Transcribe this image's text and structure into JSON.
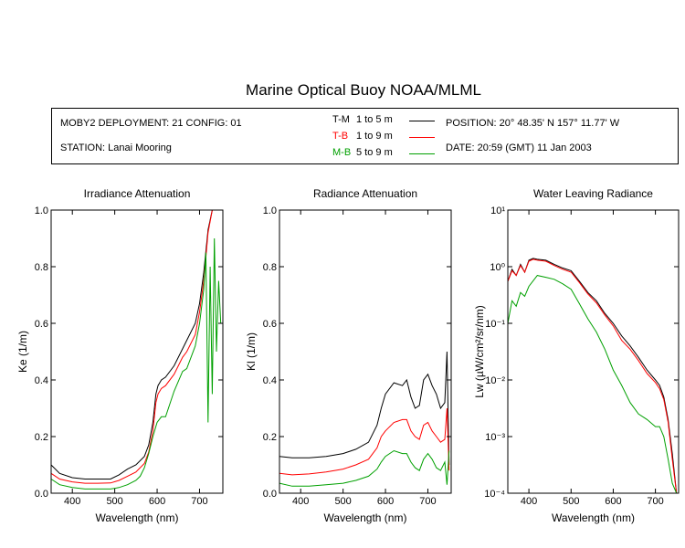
{
  "title": "Marine Optical Buoy NOAA/MLML",
  "info": {
    "deployment": "MOBY2 DEPLOYMENT: 21 CONFIG: 01",
    "station": "STATION: Lanai Mooring",
    "position": "POSITION: 20° 48.35' N   157° 11.77' W",
    "date": "DATE: 20:59 (GMT) 11 Jan 2003"
  },
  "legend": [
    {
      "code": "T-M",
      "range": "1 to 5  m",
      "color": "#000000"
    },
    {
      "code": "T-B",
      "range": "1 to 9  m",
      "color": "#ff0000"
    },
    {
      "code": "M-B",
      "range": "5 to 9  m",
      "color": "#00a000"
    }
  ],
  "chart_data": [
    {
      "type": "line",
      "title": "Irradiance Attenuation",
      "xlabel": "Wavelength (nm)",
      "ylabel": "Ke  (1/m)",
      "xlim": [
        350,
        755
      ],
      "ylim": [
        0,
        1.0
      ],
      "xticks": [
        400,
        500,
        600,
        700
      ],
      "yticks": [
        0.0,
        0.2,
        0.4,
        0.6,
        0.8,
        1.0
      ],
      "ytick_labels": [
        "0.0",
        "0.2",
        "0.4",
        "0.6",
        "0.8",
        "1.0"
      ],
      "series": [
        {
          "legend_code": "T-M",
          "color": "#000000",
          "x": [
            350,
            370,
            400,
            430,
            460,
            490,
            510,
            530,
            550,
            570,
            580,
            590,
            597,
            602,
            610,
            620,
            640,
            660,
            670,
            690,
            700,
            710,
            720,
            730,
            740,
            750
          ],
          "y": [
            0.1,
            0.07,
            0.055,
            0.05,
            0.05,
            0.05,
            0.065,
            0.085,
            0.1,
            0.13,
            0.17,
            0.25,
            0.35,
            0.38,
            0.4,
            0.41,
            0.45,
            0.51,
            0.54,
            0.6,
            0.67,
            0.78,
            0.93,
            1.0,
            1.0,
            1.0
          ]
        },
        {
          "legend_code": "T-B",
          "color": "#ff0000",
          "x": [
            350,
            370,
            400,
            430,
            460,
            490,
            510,
            530,
            550,
            570,
            580,
            590,
            597,
            602,
            610,
            620,
            640,
            660,
            670,
            690,
            700,
            710,
            720,
            730,
            740,
            750
          ],
          "y": [
            0.07,
            0.05,
            0.04,
            0.035,
            0.035,
            0.036,
            0.045,
            0.06,
            0.075,
            0.105,
            0.145,
            0.22,
            0.32,
            0.35,
            0.37,
            0.38,
            0.42,
            0.48,
            0.5,
            0.56,
            0.64,
            0.75,
            0.92,
            1.0,
            1.0,
            1.0
          ]
        },
        {
          "legend_code": "M-B",
          "color": "#00a000",
          "x": [
            350,
            370,
            400,
            430,
            460,
            490,
            510,
            530,
            550,
            560,
            570,
            580,
            590,
            600,
            610,
            620,
            640,
            660,
            670,
            690,
            700,
            710,
            715,
            720,
            725,
            730,
            735,
            740,
            745,
            750
          ],
          "y": [
            0.05,
            0.03,
            0.02,
            0.015,
            0.015,
            0.015,
            0.02,
            0.03,
            0.045,
            0.06,
            0.09,
            0.14,
            0.2,
            0.25,
            0.27,
            0.27,
            0.36,
            0.43,
            0.44,
            0.52,
            0.6,
            0.72,
            0.85,
            0.25,
            0.8,
            0.35,
            0.9,
            0.5,
            0.75,
            0.6
          ]
        }
      ]
    },
    {
      "type": "line",
      "title": "Radiance Attenuation",
      "xlabel": "Wavelength (nm)",
      "ylabel": "Kl  (1/m)",
      "xlim": [
        350,
        755
      ],
      "ylim": [
        0,
        1.0
      ],
      "xticks": [
        400,
        500,
        600,
        700
      ],
      "yticks": [
        0.0,
        0.2,
        0.4,
        0.6,
        0.8,
        1.0
      ],
      "ytick_labels": [
        "0.0",
        "0.2",
        "0.4",
        "0.6",
        "0.8",
        "1.0"
      ],
      "series": [
        {
          "legend_code": "T-M",
          "color": "#000000",
          "x": [
            350,
            380,
            420,
            460,
            500,
            530,
            560,
            580,
            590,
            600,
            620,
            640,
            650,
            660,
            670,
            680,
            690,
            700,
            710,
            720,
            730,
            740,
            745,
            750
          ],
          "y": [
            0.13,
            0.125,
            0.125,
            0.13,
            0.14,
            0.155,
            0.18,
            0.24,
            0.3,
            0.35,
            0.39,
            0.38,
            0.4,
            0.34,
            0.3,
            0.31,
            0.4,
            0.42,
            0.38,
            0.35,
            0.3,
            0.32,
            0.5,
            0.1
          ]
        },
        {
          "legend_code": "T-B",
          "color": "#ff0000",
          "x": [
            350,
            380,
            420,
            460,
            500,
            530,
            560,
            580,
            590,
            600,
            620,
            640,
            650,
            660,
            670,
            680,
            690,
            700,
            710,
            720,
            730,
            740,
            745,
            750
          ],
          "y": [
            0.07,
            0.065,
            0.068,
            0.075,
            0.085,
            0.1,
            0.12,
            0.16,
            0.2,
            0.22,
            0.25,
            0.26,
            0.26,
            0.22,
            0.2,
            0.19,
            0.24,
            0.25,
            0.22,
            0.2,
            0.18,
            0.19,
            0.3,
            0.08
          ]
        },
        {
          "legend_code": "M-B",
          "color": "#00a000",
          "x": [
            350,
            380,
            420,
            460,
            500,
            530,
            560,
            580,
            590,
            600,
            620,
            640,
            650,
            660,
            670,
            680,
            690,
            700,
            710,
            720,
            730,
            740,
            745,
            750
          ],
          "y": [
            0.035,
            0.025,
            0.025,
            0.03,
            0.035,
            0.045,
            0.06,
            0.085,
            0.11,
            0.13,
            0.15,
            0.14,
            0.14,
            0.11,
            0.09,
            0.08,
            0.12,
            0.14,
            0.12,
            0.09,
            0.08,
            0.11,
            0.03,
            0.15
          ]
        }
      ]
    },
    {
      "type": "line",
      "title": "Water Leaving Radiance",
      "xlabel": "Wavelength (nm)",
      "ylabel": "Lw  (µW/cm²/sr/nm)",
      "xlim": [
        350,
        755
      ],
      "ylim": [
        0.0001,
        10
      ],
      "yscale": "log",
      "xticks": [
        400,
        500,
        600,
        700
      ],
      "yticks": [
        0.0001,
        0.001,
        0.01,
        0.1,
        1,
        10
      ],
      "ytick_labels": [
        "10⁻⁴",
        "10⁻³",
        "10⁻²",
        "10⁻¹",
        "10⁰",
        "10¹"
      ],
      "series": [
        {
          "legend_code": "T-M",
          "color": "#000000",
          "x": [
            350,
            360,
            370,
            380,
            390,
            400,
            410,
            420,
            440,
            460,
            480,
            500,
            520,
            540,
            560,
            580,
            600,
            620,
            640,
            660,
            680,
            700,
            710,
            720,
            730,
            740,
            750
          ],
          "y": [
            0.55,
            0.9,
            0.7,
            1.1,
            0.8,
            1.3,
            1.4,
            1.35,
            1.3,
            1.1,
            0.95,
            0.85,
            0.55,
            0.35,
            0.25,
            0.15,
            0.1,
            0.06,
            0.04,
            0.025,
            0.015,
            0.01,
            0.008,
            0.005,
            0.002,
            0.0005,
            0.0001
          ]
        },
        {
          "legend_code": "T-B",
          "color": "#ff0000",
          "x": [
            350,
            360,
            370,
            380,
            390,
            400,
            410,
            420,
            440,
            460,
            480,
            500,
            520,
            540,
            560,
            580,
            600,
            620,
            640,
            660,
            680,
            700,
            710,
            720,
            730,
            740,
            750
          ],
          "y": [
            0.55,
            0.85,
            0.7,
            1.05,
            0.8,
            1.25,
            1.35,
            1.3,
            1.25,
            1.05,
            0.9,
            0.8,
            0.52,
            0.33,
            0.23,
            0.14,
            0.09,
            0.05,
            0.035,
            0.022,
            0.013,
            0.009,
            0.007,
            0.0045,
            0.0018,
            0.0004,
            0.0001
          ]
        },
        {
          "legend_code": "M-B",
          "color": "#00a000",
          "x": [
            350,
            360,
            370,
            380,
            390,
            400,
            420,
            440,
            460,
            480,
            500,
            520,
            540,
            560,
            580,
            600,
            620,
            640,
            660,
            680,
            700,
            710,
            720,
            730,
            740,
            750
          ],
          "y": [
            0.1,
            0.25,
            0.2,
            0.35,
            0.3,
            0.45,
            0.7,
            0.65,
            0.6,
            0.5,
            0.4,
            0.22,
            0.12,
            0.07,
            0.035,
            0.015,
            0.008,
            0.004,
            0.0025,
            0.002,
            0.0015,
            0.0015,
            0.001,
            0.0004,
            0.00015,
            0.0001
          ]
        }
      ]
    }
  ]
}
